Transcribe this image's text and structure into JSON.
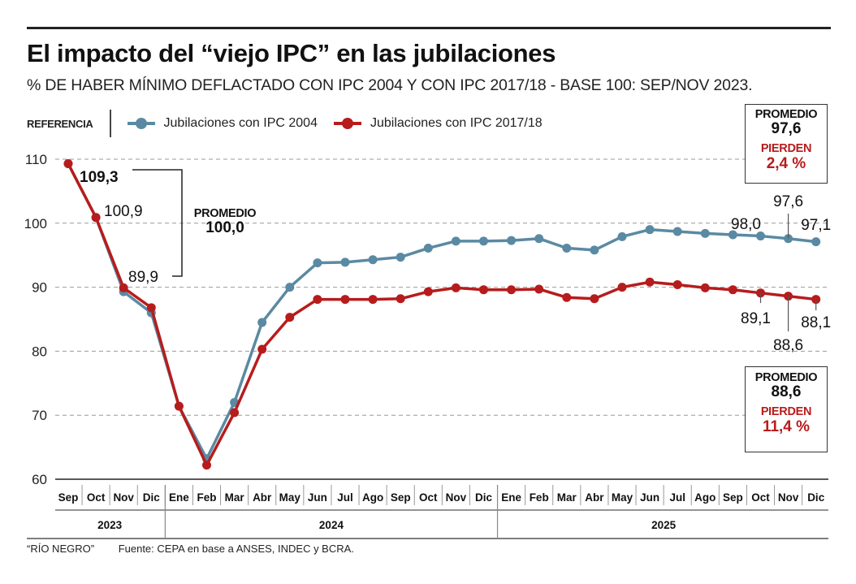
{
  "header": {
    "title": "El impacto del “viejo IPC” en las jubilaciones",
    "subtitle": "% DE HABER MÍNIMO DEFLACTADO CON IPC 2004 Y CON IPC 2017/18 - BASE 100: SEP/NOV 2023."
  },
  "legend": {
    "label": "REFERENCIA",
    "items": [
      {
        "label": "Jubilaciones con IPC 2004",
        "color": "#5a8aa3"
      },
      {
        "label": "Jubilaciones con IPC 2017/18",
        "color": "#b71c1c"
      }
    ]
  },
  "boxes": {
    "base": {
      "label": "PROMEDIO",
      "value": "100,0"
    },
    "ipc2004": {
      "label": "PROMEDIO",
      "value": "97,6",
      "lose_label": "PIERDEN",
      "lose_value": "2,4 %"
    },
    "ipc2017": {
      "label": "PROMEDIO",
      "value": "88,6",
      "lose_label": "PIERDEN",
      "lose_value": "11,4 %"
    }
  },
  "footer": {
    "credit": "“RÍO NEGRO”",
    "source": "Fuente: CEPA en base a ANSES, INDEC y BCRA."
  },
  "chart_data": {
    "type": "line",
    "title": "El impacto del “viejo IPC” en las jubilaciones",
    "subtitle": "% DE HABER MÍNIMO DEFLACTADO CON IPC 2004 Y CON IPC 2017/18 - BASE 100: SEP/NOV 2023.",
    "xlabel": "",
    "ylabel": "",
    "ylim": [
      60,
      110
    ],
    "yticks": [
      60,
      70,
      80,
      90,
      100,
      110
    ],
    "grid": true,
    "legend_position": "top-left",
    "categories": [
      "Sep",
      "Oct",
      "Nov",
      "Dic",
      "Ene",
      "Feb",
      "Mar",
      "Abr",
      "May",
      "Jun",
      "Jul",
      "Ago",
      "Sep",
      "Oct",
      "Nov",
      "Dic",
      "Ene",
      "Feb",
      "Mar",
      "Abr",
      "May",
      "Jun",
      "Jul",
      "Ago",
      "Sep",
      "Oct",
      "Nov",
      "Dic"
    ],
    "year_groups": [
      {
        "label": "2023",
        "count": 4
      },
      {
        "label": "2024",
        "count": 12
      },
      {
        "label": "2025",
        "count": 12
      }
    ],
    "series": [
      {
        "name": "Jubilaciones con IPC 2004",
        "color": "#5a8aa3",
        "values": [
          109.3,
          100.9,
          89.3,
          86.0,
          71.4,
          63.2,
          72.0,
          84.5,
          90.0,
          93.8,
          93.9,
          94.3,
          94.7,
          96.1,
          97.2,
          97.2,
          97.3,
          97.6,
          96.1,
          95.8,
          97.9,
          99.0,
          98.7,
          98.4,
          98.2,
          98.0,
          97.6,
          97.1
        ]
      },
      {
        "name": "Jubilaciones con IPC 2017/18",
        "color": "#b71c1c",
        "values": [
          109.3,
          100.9,
          89.9,
          86.8,
          71.4,
          62.2,
          70.4,
          80.3,
          85.3,
          88.1,
          88.1,
          88.1,
          88.2,
          89.3,
          89.9,
          89.6,
          89.6,
          89.7,
          88.4,
          88.2,
          90.0,
          90.8,
          90.4,
          89.9,
          89.6,
          89.1,
          88.6,
          88.1
        ]
      }
    ],
    "annotations": [
      {
        "text": "109,3",
        "index": 0
      },
      {
        "text": "100,9",
        "index": 1
      },
      {
        "text": "89,9",
        "index": 2
      },
      {
        "text": "98,0",
        "index": 25,
        "series": 0
      },
      {
        "text": "97,6",
        "index": 26,
        "series": 0
      },
      {
        "text": "97,1",
        "index": 27,
        "series": 0
      },
      {
        "text": "89,1",
        "index": 25,
        "series": 1
      },
      {
        "text": "88,6",
        "index": 26,
        "series": 1
      },
      {
        "text": "88,1",
        "index": 27,
        "series": 1
      }
    ]
  }
}
